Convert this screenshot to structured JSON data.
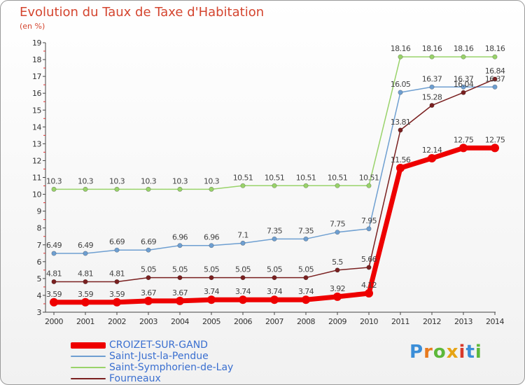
{
  "header": {
    "title": "Evolution du Taux de Taxe d'Habitation",
    "unit": "(en %)"
  },
  "brand": {
    "logo_text": "Proxiti"
  },
  "chart_data": {
    "type": "line",
    "title": "Evolution du Taux de Taxe d'Habitation",
    "ylabel": "(en %)",
    "xlabel": "",
    "x": [
      2000,
      2001,
      2002,
      2003,
      2004,
      2005,
      2006,
      2007,
      2008,
      2009,
      2010,
      2011,
      2012,
      2013,
      2014
    ],
    "ylim": [
      3,
      19
    ],
    "yticks": [
      3,
      4,
      5,
      6,
      7,
      8,
      9,
      10,
      11,
      12,
      13,
      14,
      15,
      16,
      17,
      18,
      19
    ],
    "grid": false,
    "legend_position": "bottom-left",
    "series": [
      {
        "name": "CROIZET-SUR-GAND",
        "color": "#ee0000",
        "values": [
          3.59,
          3.59,
          3.59,
          3.67,
          3.67,
          3.74,
          3.74,
          3.74,
          3.74,
          3.92,
          4.12,
          11.56,
          12.14,
          12.75,
          12.75
        ],
        "labels": [
          "3.59",
          "3.59",
          "3.59",
          "3.67",
          "3.67",
          "3.74",
          "3.74",
          "3.74",
          "3.74",
          "3.92",
          "4.12",
          "11.56",
          "12.14",
          "12.75",
          "12.75"
        ]
      },
      {
        "name": "Saint-Just-la-Pendue",
        "color": "#6e9fd1",
        "values": [
          6.49,
          6.49,
          6.69,
          6.69,
          6.96,
          6.96,
          7.1,
          7.35,
          7.35,
          7.75,
          7.95,
          16.05,
          16.37,
          16.37,
          16.37
        ],
        "labels": [
          "6.49",
          "6.49",
          "6.69",
          "6.69",
          "6.96",
          "6.96",
          "7.1",
          "7.35",
          "7.35",
          "7.75",
          "7.95",
          "16.05",
          "16.37",
          "16.37",
          "16.37"
        ]
      },
      {
        "name": "Saint-Symphorien-de-Lay",
        "color": "#99d36a",
        "values": [
          10.3,
          10.3,
          10.3,
          10.3,
          10.3,
          10.3,
          10.51,
          10.51,
          10.51,
          10.51,
          10.51,
          18.16,
          18.16,
          18.16,
          18.16
        ],
        "labels": [
          "10.3",
          "10.3",
          "10.3",
          "10.3",
          "10.3",
          "10.3",
          "10.51",
          "10.51",
          "10.51",
          "10.51",
          "10.51",
          "18.16",
          "18.16",
          "18.16",
          "18.16"
        ]
      },
      {
        "name": "Fourneaux",
        "color": "#7a2020",
        "values": [
          4.81,
          4.81,
          4.81,
          5.05,
          5.05,
          5.05,
          5.05,
          5.05,
          5.05,
          5.5,
          5.66,
          13.81,
          15.28,
          16.04,
          16.84
        ],
        "labels": [
          "4.81",
          "4.81",
          "4.81",
          "5.05",
          "5.05",
          "5.05",
          "5.05",
          "5.05",
          "5.05",
          "5.5",
          "5.66",
          "13.81",
          "15.28",
          "16.04",
          "16.84"
        ]
      }
    ]
  }
}
